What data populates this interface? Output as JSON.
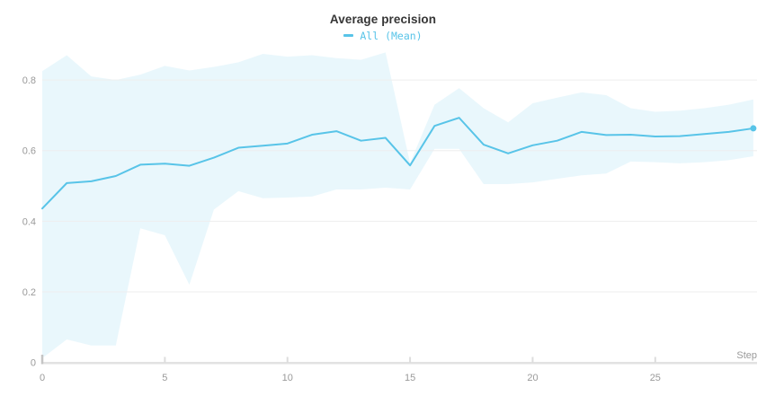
{
  "header": {
    "title": "Average precision",
    "legend_label": "All (Mean)"
  },
  "colors": {
    "line": "#58c4e8",
    "band_fill": "rgba(88,196,232,0.13)",
    "gridline": "#eeeeee",
    "axis_line": "#e2e2e2",
    "tick_stub": "#dddddd",
    "origin_tick": "#c5c5c5",
    "tick_text": "#9a9a9a",
    "title_text": "#363636"
  },
  "chart_data": {
    "type": "line",
    "title": "Average precision",
    "xlabel": "Step",
    "ylabel": "",
    "legend": [
      {
        "label": "All (Mean)",
        "color": "#58c4e8",
        "marker": "line-dash"
      }
    ],
    "legend_position": "top-center",
    "grid": "horizontal-only",
    "x_ticks": [
      0,
      5,
      10,
      15,
      20,
      25
    ],
    "y_ticks": [
      0,
      0.2,
      0.4,
      0.6,
      0.8
    ],
    "xlim": [
      0,
      29.15
    ],
    "ylim": [
      0,
      0.907
    ],
    "x": [
      0,
      1,
      2,
      3,
      4,
      5,
      6,
      7,
      8,
      9,
      10,
      11,
      12,
      13,
      14,
      15,
      16,
      17,
      18,
      19,
      20,
      21,
      22,
      23,
      24,
      25,
      26,
      27,
      28,
      29
    ],
    "series": [
      {
        "name": "All (Mean)",
        "color": "#58c4e8",
        "values": [
          0.436,
          0.508,
          0.513,
          0.528,
          0.56,
          0.563,
          0.557,
          0.58,
          0.608,
          0.614,
          0.62,
          0.645,
          0.655,
          0.628,
          0.636,
          0.558,
          0.67,
          0.693,
          0.617,
          0.592,
          0.615,
          0.628,
          0.653,
          0.644,
          0.645,
          0.64,
          0.641,
          0.647,
          0.653,
          0.663
        ],
        "band_hi": [
          0.825,
          0.87,
          0.81,
          0.8,
          0.815,
          0.84,
          0.827,
          0.837,
          0.85,
          0.874,
          0.866,
          0.87,
          0.862,
          0.857,
          0.878,
          0.565,
          0.73,
          0.777,
          0.72,
          0.68,
          0.734,
          0.75,
          0.765,
          0.757,
          0.72,
          0.71,
          0.713,
          0.72,
          0.73,
          0.745
        ],
        "band_lo": [
          0.012,
          0.065,
          0.048,
          0.048,
          0.38,
          0.36,
          0.22,
          0.433,
          0.485,
          0.465,
          0.467,
          0.47,
          0.49,
          0.49,
          0.495,
          0.49,
          0.605,
          0.605,
          0.505,
          0.505,
          0.51,
          0.52,
          0.53,
          0.535,
          0.569,
          0.567,
          0.564,
          0.567,
          0.573,
          0.584
        ],
        "end_marker": {
          "x": 29,
          "y": 0.663
        }
      }
    ]
  }
}
